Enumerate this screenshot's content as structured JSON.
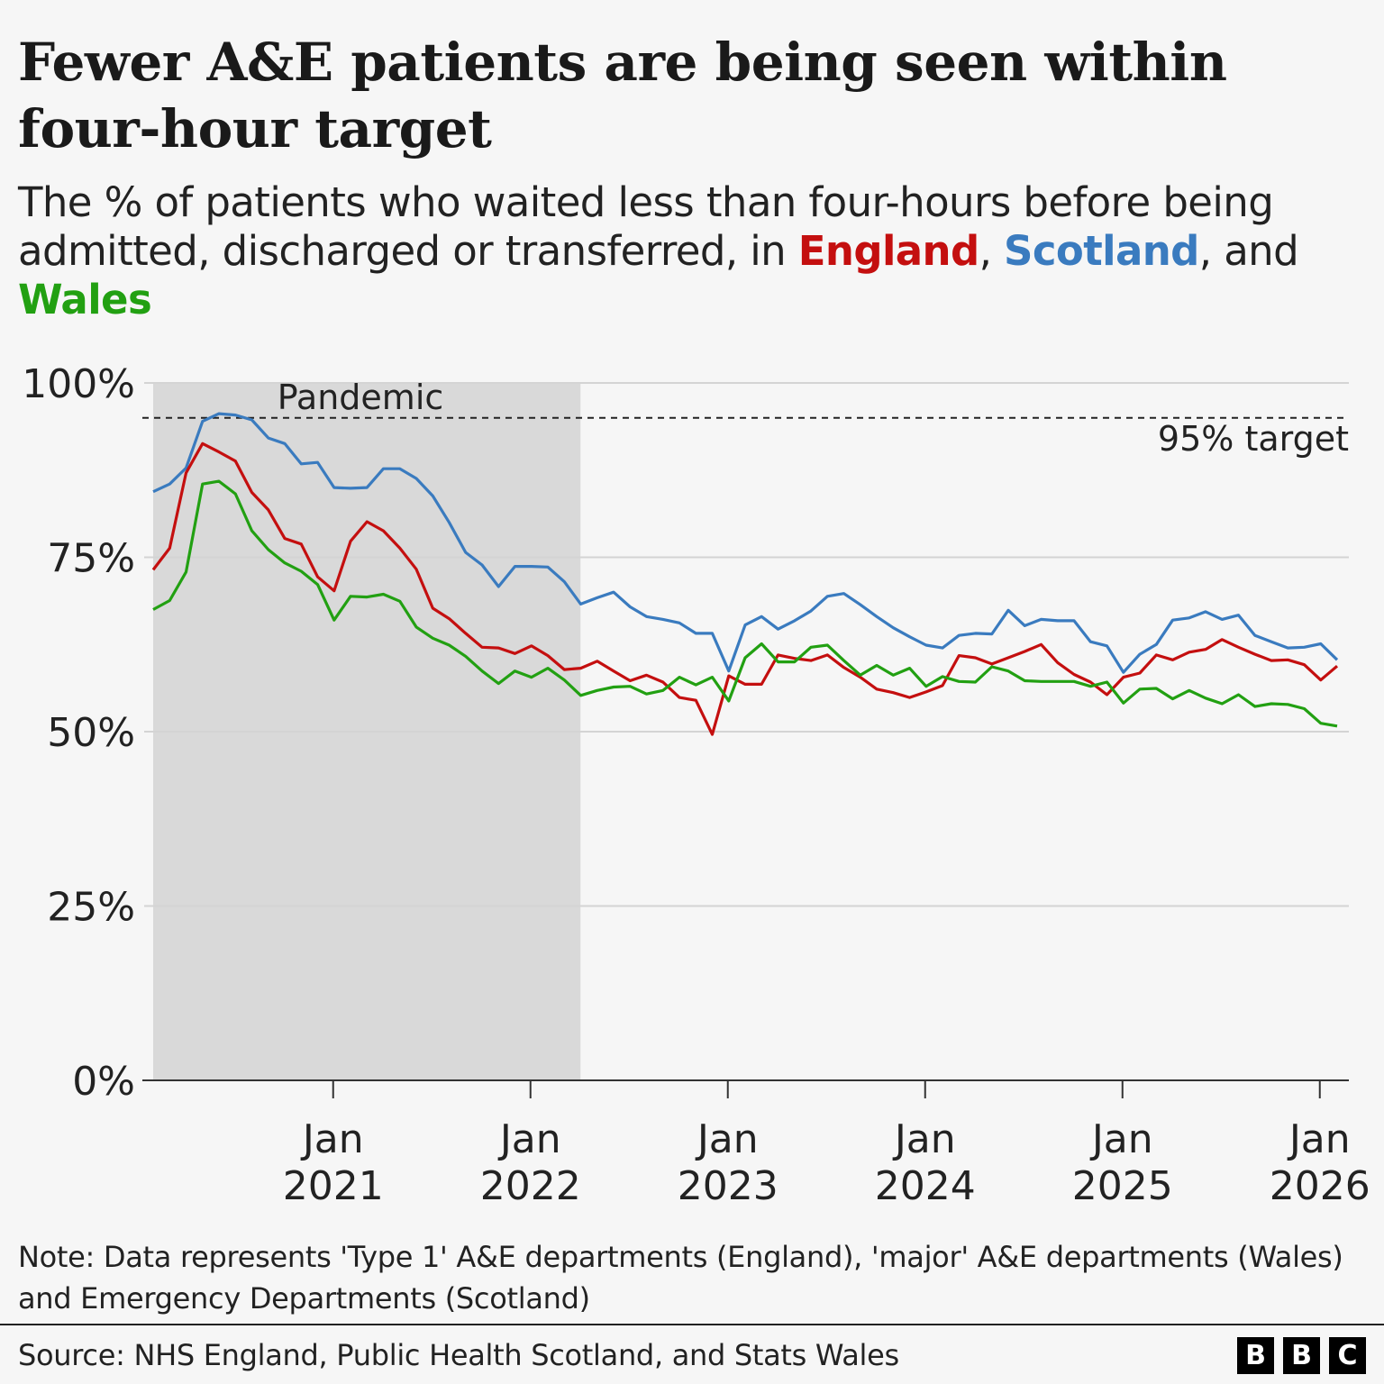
{
  "title": "Fewer A&E patients are being seen within four-hour target",
  "subtitle": {
    "text_before": "The % of patients who waited less than four-hours before being admitted, discharged or transferred, in ",
    "england": "England",
    "sep1": ", ",
    "scotland": "Scotland",
    "sep2": ", and ",
    "wales": "Wales"
  },
  "note": "Note: Data represents 'Type 1' A&E departments (England), 'major' A&E departments (Wales) and Emergency Departments (Scotland)",
  "source": "Source: NHS England, Public Health Scotland, and Stats Wales",
  "logo": [
    "B",
    "B",
    "C"
  ],
  "colors": {
    "england": "#c40f0f",
    "scotland": "#3a7bbf",
    "wales": "#22a012",
    "shade": "#d9d9d9",
    "background": "#f6f6f6"
  },
  "chart_data": {
    "type": "line",
    "title": "Fewer A&E patients are being seen within four-hour target",
    "ylabel": "",
    "xlabel": "",
    "ylim": [
      0,
      100
    ],
    "y_ticks": [
      "0%",
      "25%",
      "50%",
      "75%",
      "100%"
    ],
    "y_tick_values": [
      0,
      25,
      50,
      75,
      100
    ],
    "x_ticks": [
      {
        "month": "2021-01",
        "line1": "Jan",
        "line2": "2021"
      },
      {
        "month": "2022-01",
        "line1": "Jan",
        "line2": "2022"
      },
      {
        "month": "2023-01",
        "line1": "Jan",
        "line2": "2023"
      },
      {
        "month": "2024-01",
        "line1": "Jan",
        "line2": "2024"
      },
      {
        "month": "2025-01",
        "line1": "Jan",
        "line2": "2025"
      },
      {
        "month": "2026-01",
        "line1": "Jan",
        "line2": "2026"
      }
    ],
    "grid": true,
    "legend": "none (series named in subtitle)",
    "x_start": "2020-02",
    "x_end": "2026-02",
    "target": {
      "value": 95,
      "label": "95% target"
    },
    "shaded_period": {
      "label": "Pandemic",
      "start": "2020-02",
      "end": "2022-03"
    },
    "series": [
      {
        "name": "Scotland",
        "color": "#3a7bbf",
        "values": [
          84.4,
          85.5,
          87.8,
          94.5,
          95.6,
          95.4,
          94.7,
          92.1,
          91.3,
          88.4,
          88.6,
          85.0,
          84.9,
          85.0,
          87.7,
          87.7,
          86.3,
          83.8,
          80.0,
          75.7,
          73.9,
          70.8,
          73.7,
          73.7,
          73.6,
          71.5,
          68.3,
          69.2,
          70.0,
          67.9,
          66.5,
          66.1,
          65.6,
          64.1,
          64.1,
          58.7,
          65.3,
          66.5,
          64.7,
          65.9,
          67.3,
          69.4,
          69.8,
          68.2,
          66.5,
          64.9,
          63.6,
          62.4,
          62.0,
          63.8,
          64.1,
          64.0,
          67.4,
          65.2,
          66.1,
          65.9,
          65.9,
          62.9,
          62.3,
          58.5,
          61.1,
          62.5,
          66.0,
          66.3,
          67.2,
          66.1,
          66.7,
          63.8,
          62.9,
          62.0,
          62.1,
          62.6,
          60.3
        ]
      },
      {
        "name": "England",
        "color": "#c40f0f",
        "values": [
          73.2,
          76.3,
          87.1,
          91.3,
          90.1,
          88.8,
          84.3,
          81.8,
          77.7,
          76.9,
          72.2,
          70.2,
          77.3,
          80.1,
          78.8,
          76.3,
          73.3,
          67.7,
          66.2,
          64.1,
          62.1,
          62.0,
          61.2,
          62.3,
          60.9,
          58.9,
          59.1,
          60.1,
          58.7,
          57.3,
          58.1,
          57.1,
          54.9,
          54.5,
          49.6,
          58.0,
          56.8,
          56.8,
          61.0,
          60.5,
          60.2,
          61.0,
          59.2,
          57.8,
          56.1,
          55.6,
          54.9,
          55.7,
          56.6,
          60.9,
          60.6,
          59.7,
          60.6,
          61.5,
          62.5,
          59.9,
          58.2,
          57.1,
          55.3,
          57.8,
          58.4,
          61.0,
          60.3,
          61.4,
          61.8,
          63.2,
          62.1,
          61.1,
          60.2,
          60.3,
          59.6,
          57.4,
          59.4
        ]
      },
      {
        "name": "Wales",
        "color": "#22a012",
        "values": [
          67.5,
          68.8,
          72.9,
          85.5,
          85.9,
          84.1,
          78.8,
          76.1,
          74.2,
          73.0,
          71.1,
          66.0,
          69.4,
          69.3,
          69.7,
          68.7,
          65.0,
          63.4,
          62.4,
          60.8,
          58.7,
          56.9,
          58.7,
          57.8,
          59.1,
          57.4,
          55.2,
          55.9,
          56.4,
          56.5,
          55.4,
          55.9,
          57.8,
          56.7,
          57.8,
          54.4,
          60.6,
          62.6,
          60.0,
          60.0,
          62.1,
          62.4,
          60.2,
          58.1,
          59.5,
          58.1,
          59.1,
          56.5,
          57.9,
          57.2,
          57.1,
          59.3,
          58.7,
          57.3,
          57.2,
          57.2,
          57.2,
          56.5,
          57.1,
          54.1,
          56.1,
          56.2,
          54.7,
          55.9,
          54.8,
          54.0,
          55.3,
          53.6,
          54.0,
          53.9,
          53.3,
          51.2,
          50.8
        ]
      }
    ]
  }
}
